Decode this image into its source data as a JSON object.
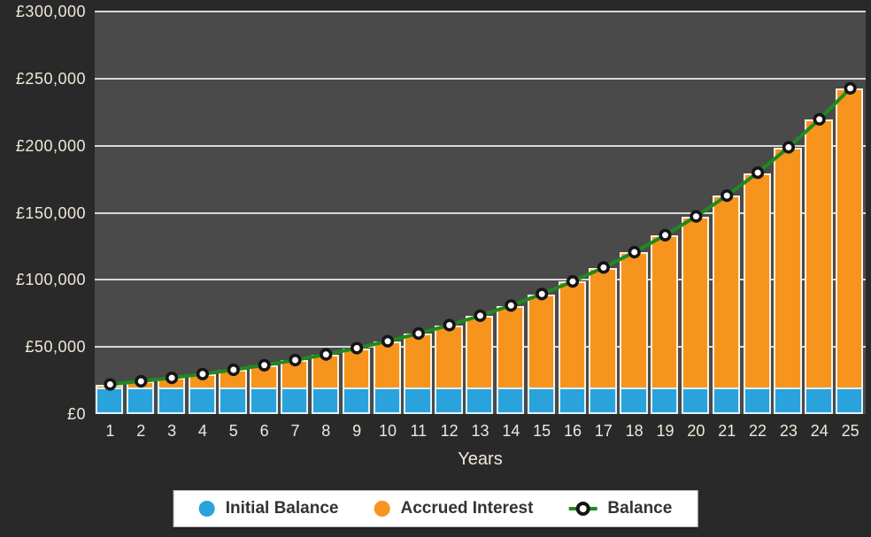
{
  "chart_data": {
    "type": "bar",
    "subtype": "stacked-bars-with-line-overlay",
    "title": "",
    "xlabel": "Years",
    "ylabel": "",
    "ylim": [
      0,
      300000
    ],
    "grid": true,
    "legend_position": "bottom",
    "categories": [
      "1",
      "2",
      "3",
      "4",
      "5",
      "6",
      "7",
      "8",
      "9",
      "10",
      "11",
      "12",
      "13",
      "14",
      "15",
      "16",
      "17",
      "18",
      "19",
      "20",
      "21",
      "22",
      "23",
      "24",
      "25"
    ],
    "yticks": [
      {
        "value": 0,
        "label": "£0"
      },
      {
        "value": 50000,
        "label": "£50,000"
      },
      {
        "value": 100000,
        "label": "£100,000"
      },
      {
        "value": 150000,
        "label": "£150,000"
      },
      {
        "value": 200000,
        "label": "£200,000"
      },
      {
        "value": 250000,
        "label": "£250,000"
      },
      {
        "value": 300000,
        "label": "£300,000"
      }
    ],
    "series": [
      {
        "name": "Initial Balance",
        "type": "bar",
        "color": "#2aa3dc",
        "values": [
          20000,
          20000,
          20000,
          20000,
          20000,
          20000,
          20000,
          20000,
          20000,
          20000,
          20000,
          20000,
          20000,
          20000,
          20000,
          20000,
          20000,
          20000,
          20000,
          20000,
          20000,
          20000,
          20000,
          20000,
          20000
        ]
      },
      {
        "name": "Accrued Interest",
        "type": "bar",
        "color": "#f7941e",
        "values": [
          2100,
          4421,
          6985,
          9818,
          12949,
          16409,
          20231,
          24456,
          29124,
          34282,
          39981,
          46279,
          53239,
          60929,
          69426,
          78816,
          89191,
          100657,
          113326,
          127325,
          142794,
          159887,
          178775,
          199647,
          222710
        ]
      }
    ],
    "line": {
      "name": "Balance",
      "type": "line",
      "color": "#1f8a1f",
      "marker_fill": "#ffffff",
      "marker_stroke": "#151515",
      "values": [
        22100,
        24421,
        26985,
        29818,
        32949,
        36409,
        40231,
        44456,
        49124,
        54282,
        59981,
        66279,
        73239,
        80929,
        89426,
        98816,
        109191,
        120657,
        133326,
        147325,
        162794,
        179887,
        198775,
        219647,
        242710
      ]
    }
  },
  "legend": {
    "items": [
      {
        "label": "Initial Balance",
        "color": "#2aa3dc",
        "marker": "circle"
      },
      {
        "label": "Accrued Interest",
        "color": "#f7941e",
        "marker": "circle"
      },
      {
        "label": "Balance",
        "color": "#1f8a1f",
        "marker": "line-circle"
      }
    ]
  },
  "colors": {
    "page_bg": "#292929",
    "plot_bg": "#4a4a4a",
    "gridline": "#d9d9d9",
    "axis_text": "#efe9da",
    "bar_border": "rgba(255,255,255,0.85)",
    "legend_bg": "#ffffff",
    "legend_border": "#bbbbbb",
    "legend_text": "#333333"
  }
}
